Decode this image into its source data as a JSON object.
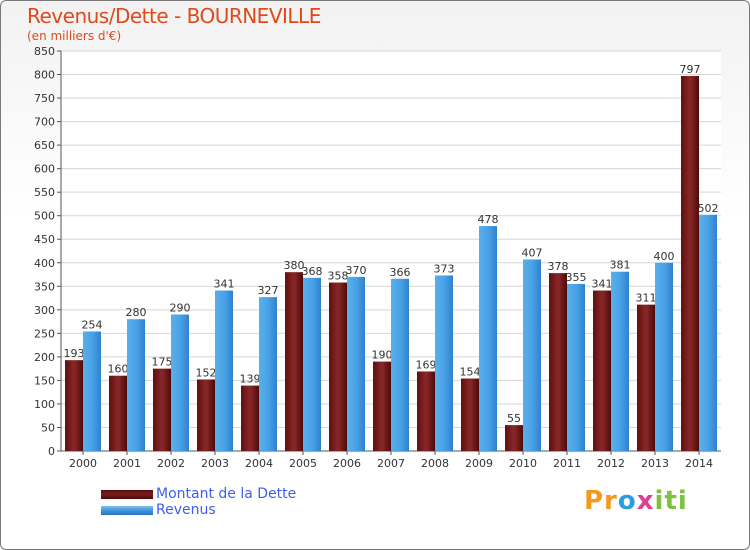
{
  "chart_data": {
    "type": "bar",
    "title": "Revenus/Dette - BOURNEVILLE",
    "subtitle": "(en milliers d'€)",
    "categories": [
      "2000",
      "2001",
      "2002",
      "2003",
      "2004",
      "2005",
      "2006",
      "2007",
      "2008",
      "2009",
      "2010",
      "2011",
      "2012",
      "2013",
      "2014"
    ],
    "series": [
      {
        "name": "Montant de la Dette",
        "color": "#7b1d1d",
        "values": [
          193,
          160,
          175,
          152,
          139,
          380,
          358,
          190,
          169,
          154,
          55,
          378,
          341,
          311,
          797
        ]
      },
      {
        "name": "Revenus",
        "color": "#3a8fd8",
        "values": [
          254,
          280,
          290,
          341,
          327,
          368,
          370,
          366,
          373,
          478,
          407,
          355,
          381,
          400,
          502
        ]
      }
    ],
    "ylim": [
      0,
      850
    ],
    "yticks": [
      0,
      50,
      100,
      150,
      200,
      250,
      300,
      350,
      400,
      450,
      500,
      550,
      600,
      650,
      700,
      750,
      800,
      850
    ],
    "grid": true,
    "legend_position": "bottom-left"
  },
  "legend": {
    "debt_label": "Montant de la Dette",
    "revenue_label": "Revenus"
  },
  "logo": {
    "p1": "Pr",
    "p2": "o",
    "p3": "x",
    "p4": "iti"
  }
}
